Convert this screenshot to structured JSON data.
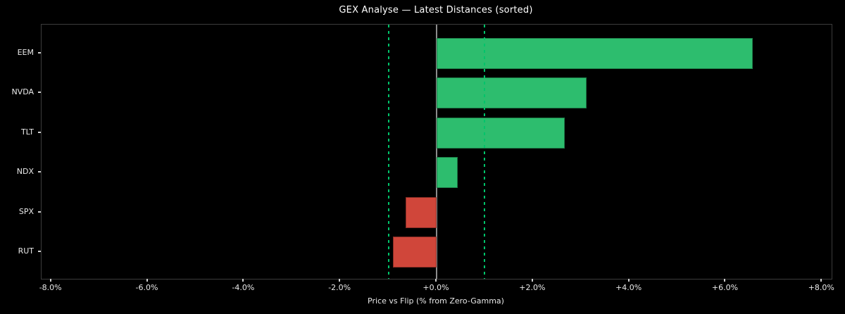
{
  "figure": {
    "background": "#000000"
  },
  "chart_data": {
    "type": "bar",
    "orientation": "horizontal",
    "title": "GEX Analyse — Latest Distances (sorted)",
    "xlabel": "Price vs Flip (% from Zero-Gamma)",
    "ylabel": "",
    "categories": [
      "EEM",
      "NVDA",
      "TLT",
      "NDX",
      "SPX",
      "RUT"
    ],
    "values": [
      6.57,
      3.12,
      2.66,
      0.44,
      -0.65,
      -0.9
    ],
    "value_unit": "%",
    "xlim": [
      -8.2,
      8.2
    ],
    "xticks": [
      -8,
      -6,
      -4,
      -2,
      0,
      2,
      4,
      6,
      8
    ],
    "xtick_labels": [
      "-8.0%",
      "-6.0%",
      "-4.0%",
      "-2.0%",
      "+0.0%",
      "+2.0%",
      "+4.0%",
      "+6.0%",
      "+8.0%"
    ],
    "grid": false,
    "legend": null,
    "colors": {
      "positive": "#2dbd6e",
      "negative": "#d0463a",
      "reference_dashed": "#00c46a",
      "zero_line": "#8c8c8c",
      "spine": "#3c3c3c",
      "text": "#eaeaea",
      "title_text": "#ffffff",
      "background": "#000000"
    },
    "reference_lines": [
      {
        "x": -1.0,
        "style": "dashed",
        "label": "minus-1-percent"
      },
      {
        "x": 1.0,
        "style": "dashed",
        "label": "plus-1-percent"
      },
      {
        "x": 0.0,
        "style": "solid",
        "label": "zero-gamma-flip"
      }
    ]
  }
}
